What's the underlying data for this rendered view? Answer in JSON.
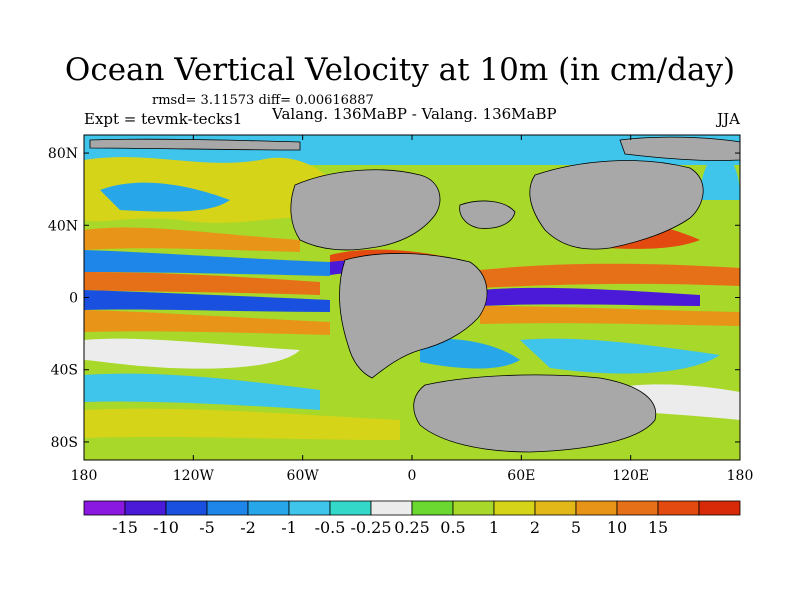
{
  "title": "Ocean Vertical Velocity at 10m (in cm/day)",
  "stats": "rmsd= 3.11573 diff= 0.00616887",
  "experiment": "Expt = tevmk-tecks1",
  "comparison": "Valang. 136MaBP - Valang. 136MaBP",
  "season": "JJA",
  "map": {
    "projection": "cylindrical equidistant",
    "lon_range": [
      -180,
      180
    ],
    "lat_range": [
      -90,
      90
    ],
    "land_color": "#a8a8a8",
    "lon_ticks": [
      {
        "value": -180,
        "label": "180"
      },
      {
        "value": -120,
        "label": "120W"
      },
      {
        "value": -60,
        "label": "60W"
      },
      {
        "value": 0,
        "label": "0"
      },
      {
        "value": 60,
        "label": "60E"
      },
      {
        "value": 120,
        "label": "120E"
      },
      {
        "value": 180,
        "label": "180"
      }
    ],
    "lat_ticks": [
      {
        "value": 80,
        "label": "80N"
      },
      {
        "value": 40,
        "label": "40N"
      },
      {
        "value": 0,
        "label": "0"
      },
      {
        "value": -40,
        "label": "40S"
      },
      {
        "value": -80,
        "label": "80S"
      }
    ]
  },
  "colorbar": {
    "colors": [
      "#8a18e0",
      "#4a1ad8",
      "#1a50e0",
      "#1e86e8",
      "#27a6ea",
      "#3fc4ec",
      "#34d8c8",
      "#ececec",
      "#6ad830",
      "#a8d82a",
      "#d6d418",
      "#e2b818",
      "#e89418",
      "#e67018",
      "#e24a10",
      "#d82a08"
    ],
    "labels": [
      "-15",
      "-10",
      "-5",
      "-2",
      "-1",
      "-0.5",
      "-0.25",
      "0.25",
      "0.5",
      "1",
      "2",
      "5",
      "10",
      "15"
    ]
  }
}
